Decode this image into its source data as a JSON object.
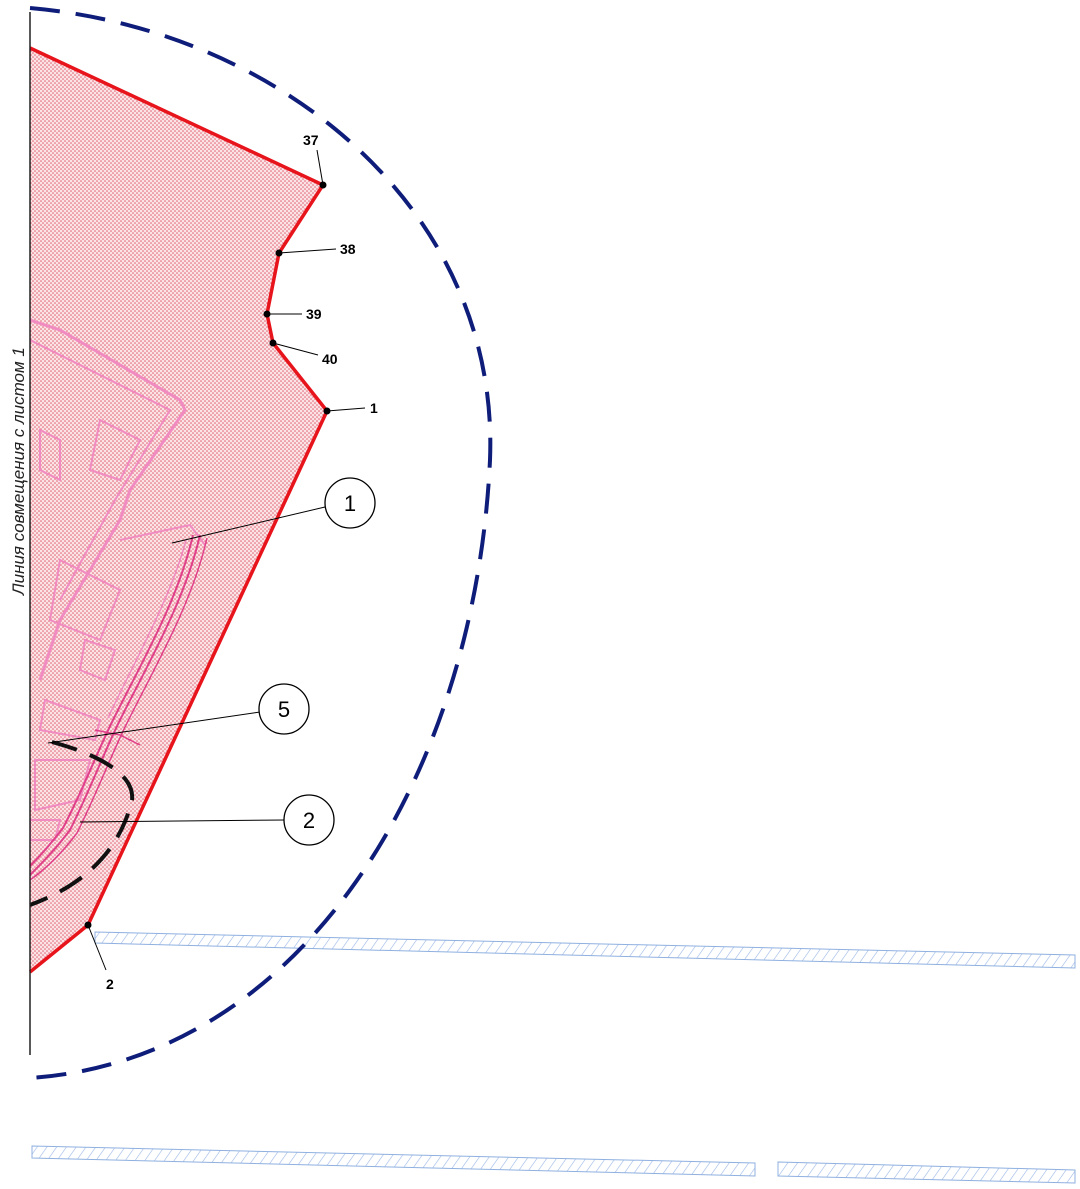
{
  "side_label": "Линия совмещения с листом 1",
  "boundary_points": [
    {
      "label": "37"
    },
    {
      "label": "38"
    },
    {
      "label": "39"
    },
    {
      "label": "40"
    },
    {
      "label": "1"
    },
    {
      "label": "2"
    }
  ],
  "callouts": [
    {
      "label": "1"
    },
    {
      "label": "5"
    },
    {
      "label": "2"
    }
  ],
  "colors": {
    "boundary": "#e8141c",
    "hatch": "#e05060",
    "zone_outline": "#0f1d7a",
    "structures": "#f08ac0",
    "roads": "#8fb0e0"
  }
}
